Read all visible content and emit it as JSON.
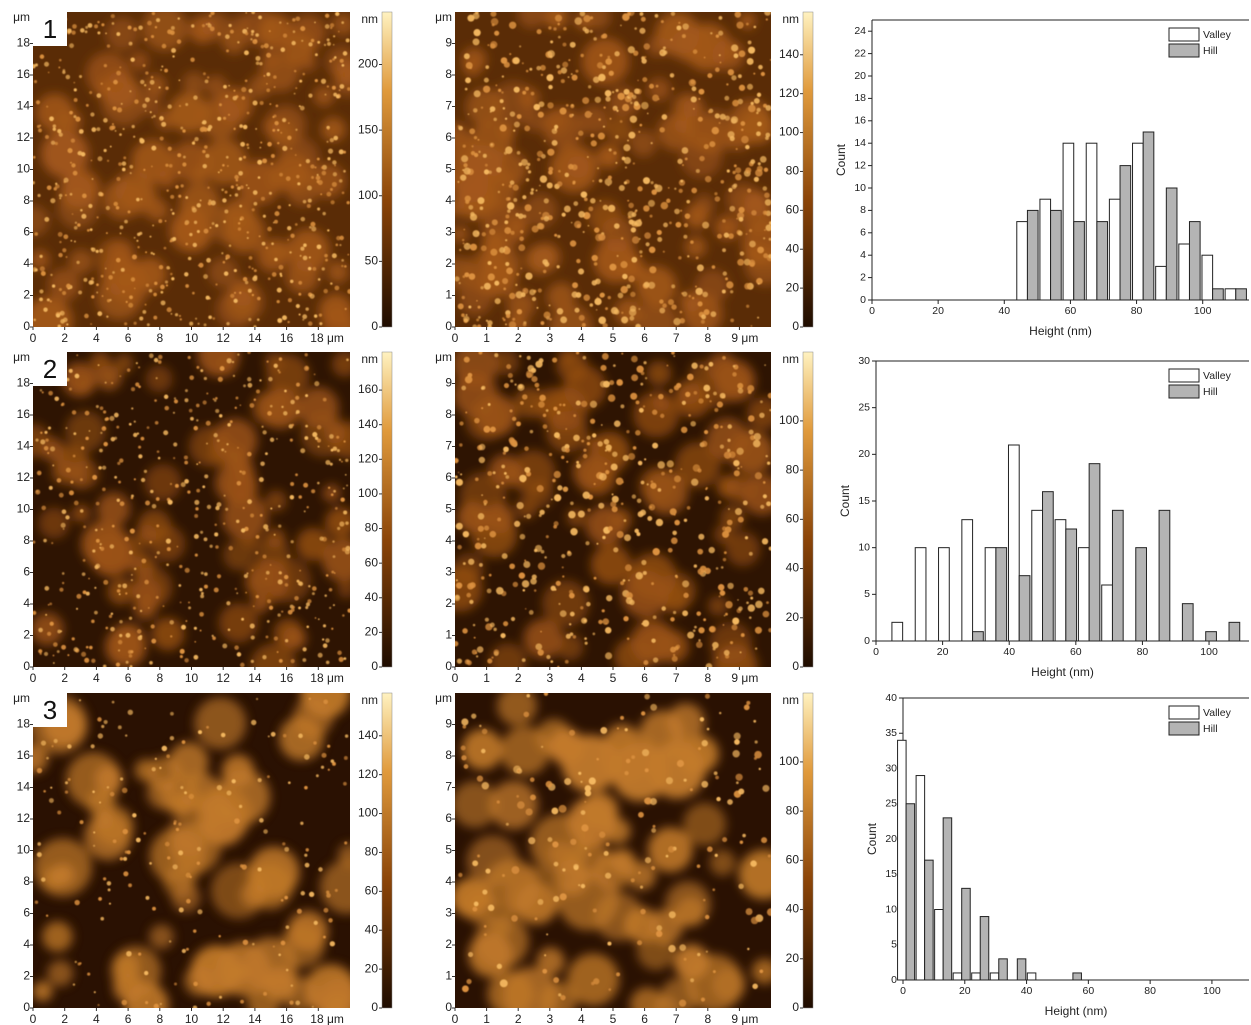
{
  "chart_data": [
    {
      "type": "afm",
      "panel_label": "1",
      "xlim": [
        0,
        20
      ],
      "ylim": [
        0,
        20
      ],
      "y_unit": "μm",
      "xticks": [
        0,
        2,
        4,
        6,
        8,
        10,
        12,
        14,
        16,
        {
          "value": 18,
          "label": "18 μm"
        }
      ],
      "yticks": [
        0,
        2,
        4,
        6,
        8,
        10,
        12,
        14,
        16,
        18
      ],
      "colorbar": {
        "unit": "nm",
        "lim": [
          0,
          240
        ],
        "ticks": [
          0,
          50,
          100,
          150,
          200
        ]
      }
    },
    {
      "type": "afm",
      "xlim": [
        0,
        10
      ],
      "ylim": [
        0,
        10
      ],
      "y_unit": "μm",
      "xticks": [
        0,
        1,
        2,
        3,
        4,
        5,
        6,
        7,
        8,
        {
          "value": 9,
          "label": "9 μm"
        }
      ],
      "yticks": [
        0,
        1,
        2,
        3,
        4,
        5,
        6,
        7,
        8,
        9
      ],
      "colorbar": {
        "unit": "nm",
        "lim": [
          0,
          162
        ],
        "ticks": [
          0,
          20,
          40,
          60,
          80,
          100,
          120,
          140
        ]
      }
    },
    {
      "type": "bar",
      "xlabel": "Height (nm)",
      "ylabel": "Count",
      "legend": "upper right",
      "xlim": [
        0,
        114
      ],
      "ylim": [
        0,
        25
      ],
      "xticks": [
        0,
        20,
        40,
        60,
        80,
        100
      ],
      "yticks": [
        0,
        2,
        4,
        6,
        8,
        10,
        12,
        14,
        16,
        18,
        20,
        22,
        24
      ],
      "x": [
        47,
        54,
        61,
        68,
        75,
        82,
        89,
        96,
        103,
        110
      ],
      "series": [
        {
          "name": "Valley",
          "color": "#ffffff",
          "values": [
            7,
            9,
            14,
            14,
            9,
            14,
            3,
            5,
            4,
            1
          ]
        },
        {
          "name": "Hill",
          "color": "#b4b4b4",
          "values": [
            8,
            8,
            7,
            7,
            12,
            15,
            10,
            7,
            1,
            1
          ]
        }
      ]
    },
    {
      "type": "afm",
      "panel_label": "2",
      "xlim": [
        0,
        20
      ],
      "ylim": [
        0,
        20
      ],
      "y_unit": "μm",
      "xticks": [
        0,
        2,
        4,
        6,
        8,
        10,
        12,
        14,
        16,
        {
          "value": 18,
          "label": "18 μm"
        }
      ],
      "yticks": [
        0,
        2,
        4,
        6,
        8,
        10,
        12,
        14,
        16,
        18
      ],
      "colorbar": {
        "unit": "nm",
        "lim": [
          0,
          182
        ],
        "ticks": [
          0,
          20,
          40,
          60,
          80,
          100,
          120,
          140,
          160
        ]
      }
    },
    {
      "type": "afm",
      "xlim": [
        0,
        10
      ],
      "ylim": [
        0,
        10
      ],
      "y_unit": "μm",
      "xticks": [
        0,
        1,
        2,
        3,
        4,
        5,
        6,
        7,
        8,
        {
          "value": 9,
          "label": "9 μm"
        }
      ],
      "yticks": [
        0,
        1,
        2,
        3,
        4,
        5,
        6,
        7,
        8,
        9
      ],
      "colorbar": {
        "unit": "nm",
        "lim": [
          0,
          128
        ],
        "ticks": [
          0,
          20,
          40,
          60,
          80,
          100
        ]
      }
    },
    {
      "type": "bar",
      "xlabel": "Height (nm)",
      "ylabel": "Count",
      "legend": "upper right",
      "xlim": [
        0,
        112
      ],
      "ylim": [
        0,
        30
      ],
      "xticks": [
        0,
        20,
        40,
        60,
        80,
        100
      ],
      "yticks": [
        0,
        5,
        10,
        15,
        20,
        25,
        30
      ],
      "x": [
        8,
        15,
        22,
        29,
        36,
        43,
        50,
        57,
        64,
        71,
        78,
        85,
        92,
        99,
        106
      ],
      "series": [
        {
          "name": "Valley",
          "color": "#ffffff",
          "values": [
            2,
            10,
            10,
            13,
            10,
            21,
            14,
            13,
            10,
            6,
            0,
            0,
            0,
            0,
            0
          ]
        },
        {
          "name": "Hill",
          "color": "#b4b4b4",
          "values": [
            0,
            0,
            0,
            1,
            10,
            7,
            16,
            12,
            19,
            14,
            10,
            14,
            4,
            1,
            2
          ]
        }
      ]
    },
    {
      "type": "afm",
      "panel_label": "3",
      "xlim": [
        0,
        20
      ],
      "ylim": [
        0,
        20
      ],
      "y_unit": "μm",
      "xticks": [
        0,
        2,
        4,
        6,
        8,
        10,
        12,
        14,
        16,
        {
          "value": 18,
          "label": "18 μm"
        }
      ],
      "yticks": [
        0,
        2,
        4,
        6,
        8,
        10,
        12,
        14,
        16,
        18
      ],
      "colorbar": {
        "unit": "nm",
        "lim": [
          0,
          162
        ],
        "ticks": [
          0,
          20,
          40,
          60,
          80,
          100,
          120,
          140
        ]
      }
    },
    {
      "type": "afm",
      "xlim": [
        0,
        10
      ],
      "ylim": [
        0,
        10
      ],
      "y_unit": "μm",
      "xticks": [
        0,
        1,
        2,
        3,
        4,
        5,
        6,
        7,
        8,
        {
          "value": 9,
          "label": "9 μm"
        }
      ],
      "yticks": [
        0,
        1,
        2,
        3,
        4,
        5,
        6,
        7,
        8,
        9
      ],
      "colorbar": {
        "unit": "nm",
        "lim": [
          0,
          128
        ],
        "ticks": [
          0,
          20,
          40,
          60,
          80,
          100
        ]
      }
    },
    {
      "type": "bar",
      "xlabel": "Height (nm)",
      "ylabel": "Count",
      "legend": "upper right",
      "xlim": [
        0,
        112
      ],
      "ylim": [
        0,
        40
      ],
      "xticks": [
        0,
        20,
        40,
        60,
        80,
        100
      ],
      "yticks": [
        0,
        5,
        10,
        15,
        20,
        25,
        30,
        35,
        40
      ],
      "x": [
        1,
        7,
        13,
        19,
        25,
        31,
        37,
        43,
        49,
        55
      ],
      "series": [
        {
          "name": "Valley",
          "color": "#ffffff",
          "values": [
            34,
            29,
            10,
            1,
            1,
            1,
            0,
            1,
            0,
            0
          ]
        },
        {
          "name": "Hill",
          "color": "#b4b4b4",
          "values": [
            25,
            17,
            23,
            13,
            9,
            3,
            3,
            0,
            0,
            1
          ]
        }
      ]
    }
  ]
}
